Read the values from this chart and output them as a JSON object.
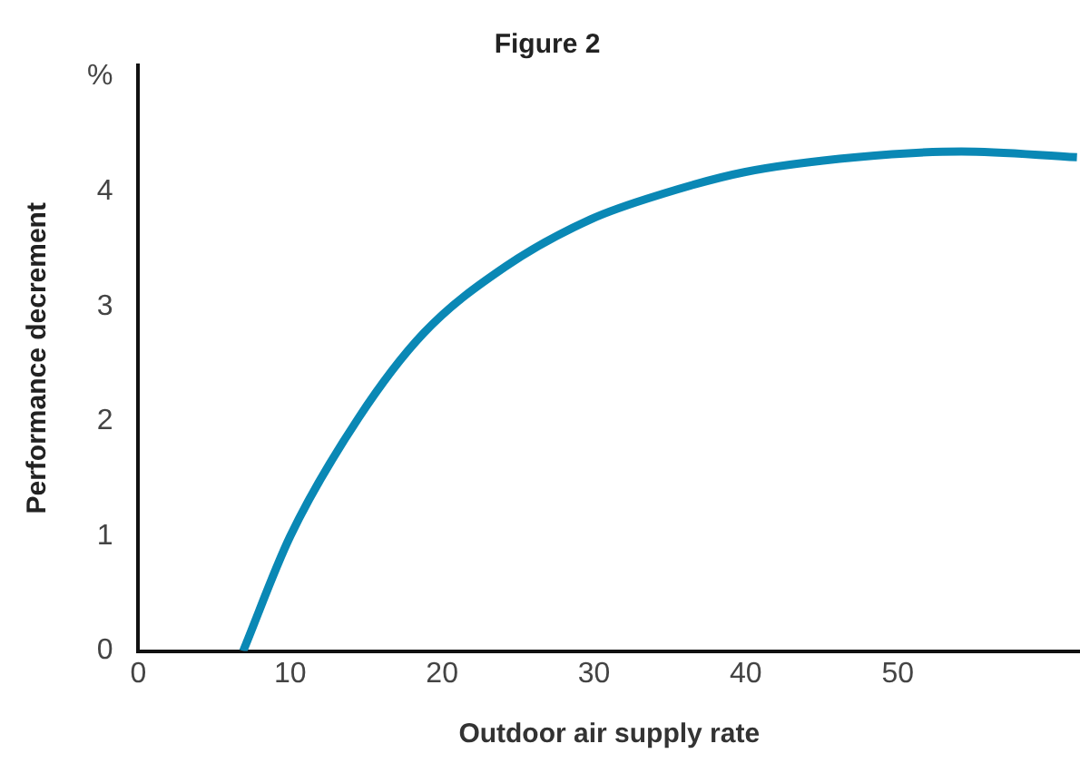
{
  "chart_data": {
    "type": "line",
    "title": "Figure 2",
    "xlabel": "Outdoor air supply rate",
    "ylabel": "Performance decrement",
    "x": [
      6.9,
      10,
      14.5,
      18.8,
      24.2,
      29.8,
      34.5,
      39.9,
      47.3,
      54.2,
      61.8
    ],
    "series": [
      {
        "color": "#0a88b5",
        "values": [
          0,
          1,
          2.03,
          2.77,
          3.35,
          3.76,
          3.98,
          4.17,
          4.3,
          4.35,
          4.3
        ]
      }
    ],
    "xlim": [
      0,
      62
    ],
    "xticks": [
      0,
      10,
      20,
      30,
      40,
      50
    ],
    "ylim": [
      0,
      5.1
    ],
    "yticks": [
      0,
      1,
      2,
      3,
      4,
      {
        "value": 5,
        "label": "%"
      }
    ],
    "grid": false,
    "legend": false,
    "marker": "none",
    "line_style": "solid"
  }
}
